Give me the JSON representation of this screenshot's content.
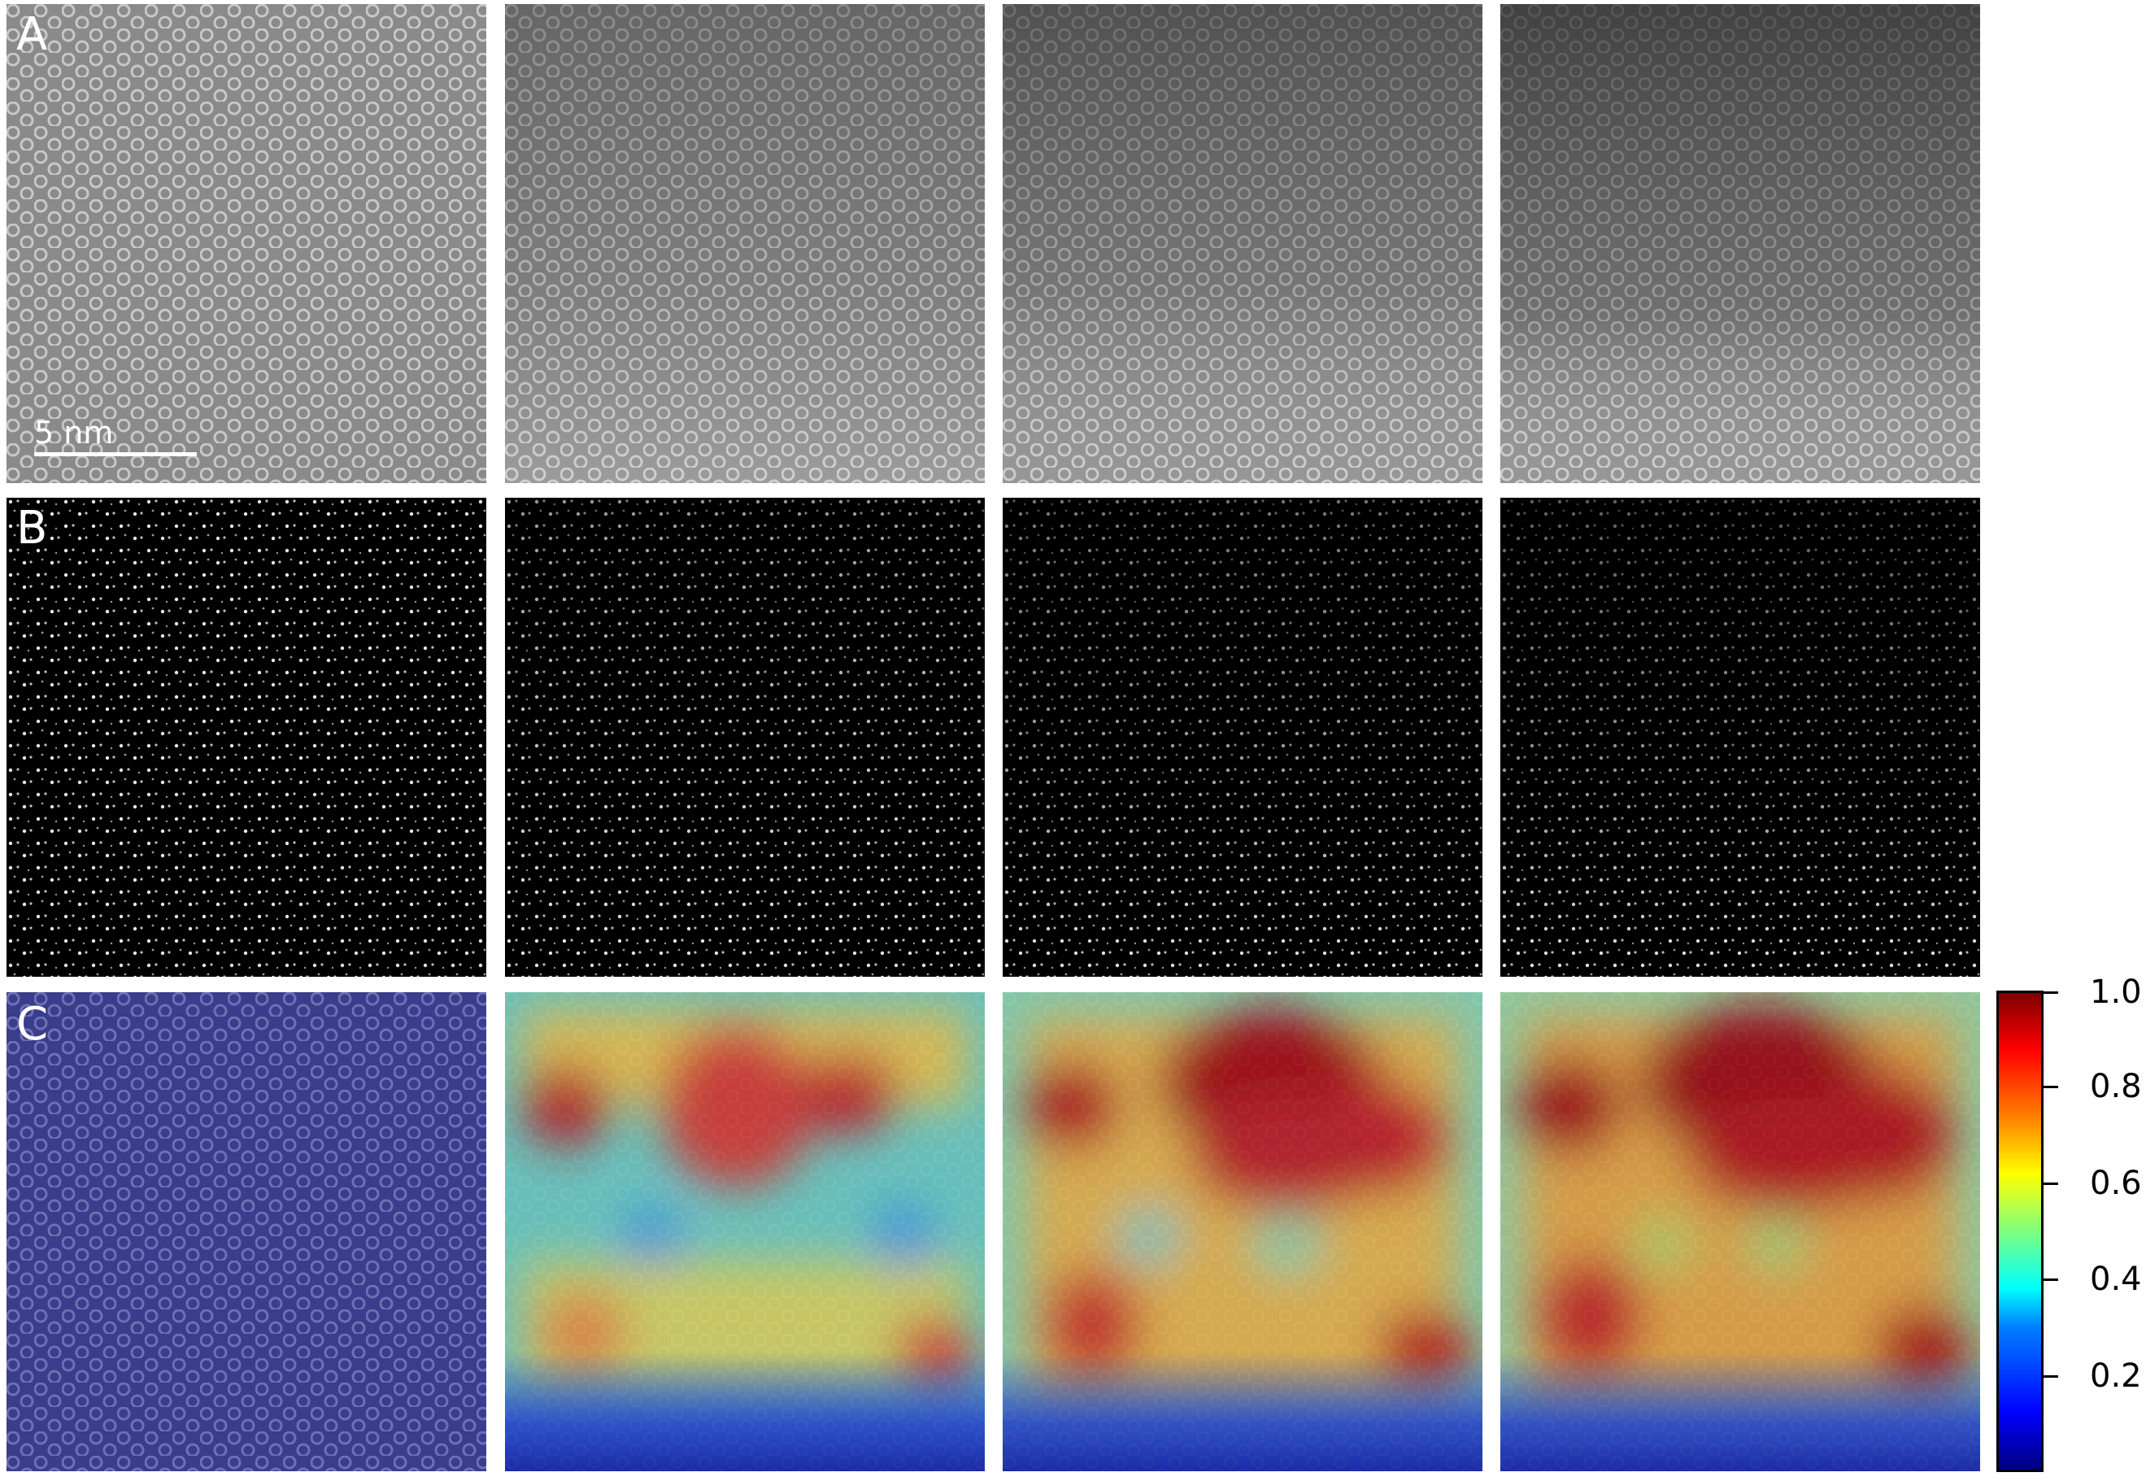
{
  "rows": [
    {
      "label": "A",
      "kind": "stem"
    },
    {
      "label": "B",
      "kind": "atoms"
    },
    {
      "label": "C",
      "kind": "heatmap"
    }
  ],
  "scale_bar": {
    "text": "5 nm"
  },
  "colorbar": {
    "tick_labels": [
      "0.2",
      "0.4",
      "0.6",
      "0.8",
      "1.0"
    ],
    "tick_values": [
      0.2,
      0.4,
      0.6,
      0.8,
      1.0
    ],
    "colormap": "jet"
  },
  "colors": {
    "background": "#ffffff",
    "label": "#ffffff"
  }
}
